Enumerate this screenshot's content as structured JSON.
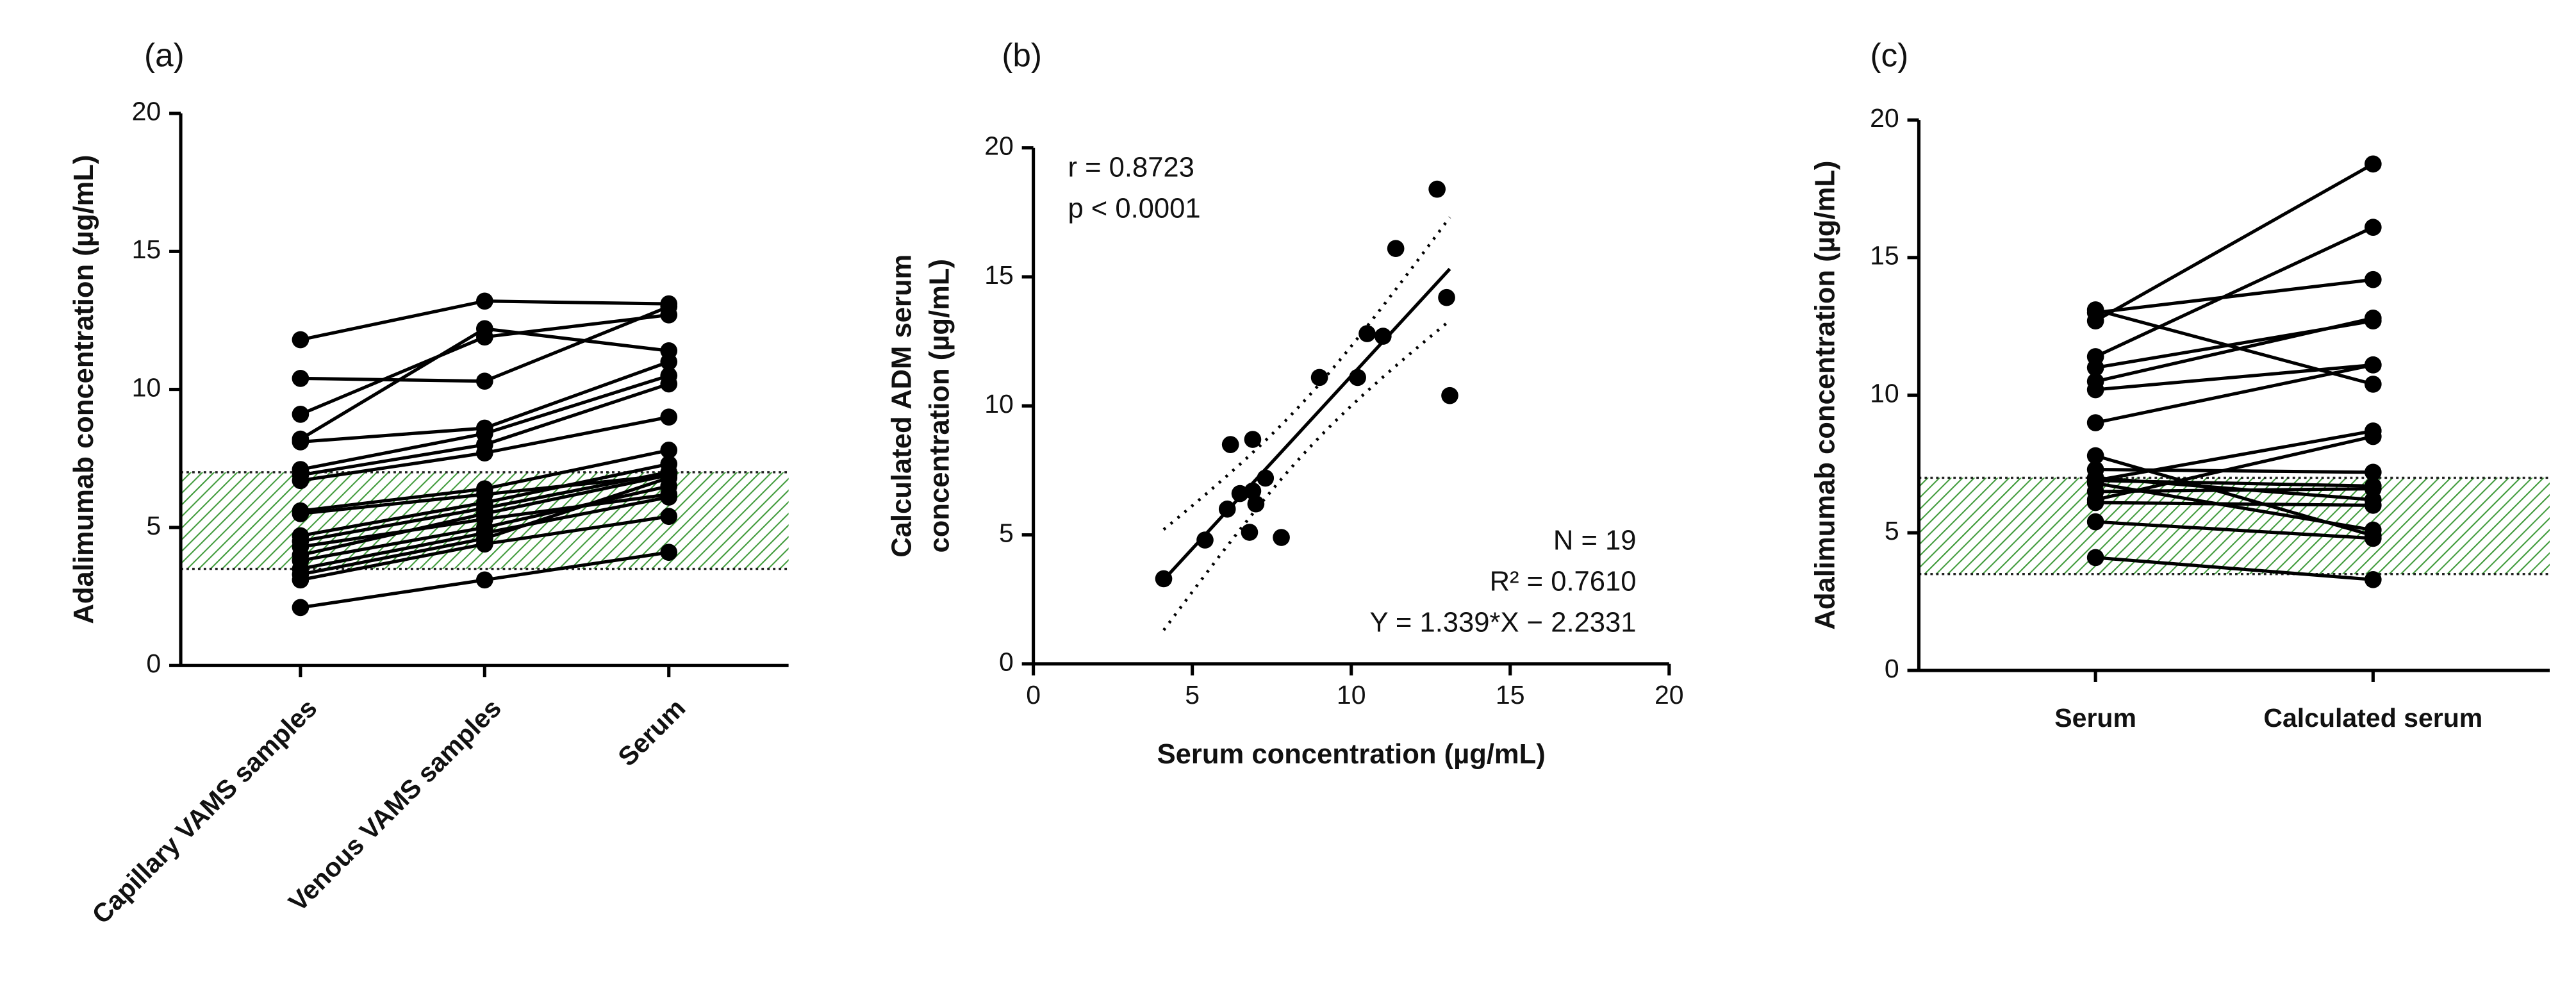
{
  "chart_data": [
    {
      "type": "line",
      "label": "(a)",
      "y_label": "Adalimumab concentration (µg/mL)",
      "categories": [
        "Capillary VAMS samples",
        "Venous VAMS samples",
        "Serum"
      ],
      "ylim": [
        0,
        20
      ],
      "yticks": [
        0,
        5,
        10,
        15,
        20
      ],
      "color": "#000000",
      "band": [
        3.5,
        7
      ],
      "band_color": "#3f9a3a",
      "series": [
        {
          "values": [
            2.1,
            3.1,
            4.1
          ]
        },
        {
          "values": [
            3.1,
            4.4,
            5.4
          ]
        },
        {
          "values": [
            3.5,
            4.8,
            6.1
          ]
        },
        {
          "values": [
            4.3,
            5.3,
            6.2
          ]
        },
        {
          "values": [
            3.8,
            5.0,
            6.5
          ]
        },
        {
          "values": [
            3.3,
            4.6,
            6.8
          ]
        },
        {
          "values": [
            5.5,
            6.2,
            6.9
          ]
        },
        {
          "values": [
            4.0,
            5.5,
            6.9
          ]
        },
        {
          "values": [
            4.5,
            5.7,
            7.0
          ]
        },
        {
          "values": [
            4.7,
            5.9,
            7.3
          ]
        },
        {
          "values": [
            5.6,
            6.4,
            7.8
          ]
        },
        {
          "values": [
            6.7,
            7.7,
            9.0
          ]
        },
        {
          "values": [
            6.9,
            8.0,
            10.2
          ]
        },
        {
          "values": [
            7.1,
            8.4,
            10.5
          ]
        },
        {
          "values": [
            8.1,
            8.6,
            11.0
          ]
        },
        {
          "values": [
            8.2,
            12.2,
            11.4
          ]
        },
        {
          "values": [
            9.1,
            11.9,
            12.7
          ]
        },
        {
          "values": [
            10.4,
            10.3,
            13.0
          ]
        },
        {
          "values": [
            11.8,
            13.2,
            13.1
          ]
        }
      ]
    },
    {
      "type": "scatter",
      "label": "(b)",
      "x_label": "Serum concentration (µg/mL)",
      "y_label": [
        "Calculated ADM serum",
        "concentration (µg/mL)"
      ],
      "xlim": [
        0,
        20
      ],
      "xticks": [
        0,
        5,
        10,
        15,
        20
      ],
      "ylim": [
        0,
        20
      ],
      "yticks": [
        0,
        5,
        10,
        15,
        20
      ],
      "color": "#000000",
      "x": [
        4.1,
        5.4,
        6.1,
        6.2,
        6.5,
        6.8,
        6.9,
        6.9,
        7.0,
        7.3,
        7.8,
        9.0,
        10.2,
        10.5,
        11.0,
        11.4,
        12.7,
        13.0,
        13.1
      ],
      "y": [
        3.3,
        4.8,
        6.0,
        8.5,
        6.6,
        5.1,
        8.7,
        6.7,
        6.2,
        7.2,
        4.9,
        11.1,
        11.1,
        12.8,
        12.7,
        16.1,
        18.4,
        14.2,
        10.4
      ],
      "fit": {
        "slope": 1.339,
        "intercept": -2.2331
      },
      "annotations": [
        "r = 0.8723",
        "p < 0.0001"
      ],
      "stats": [
        "N = 19",
        "R² =  0.7610",
        "Y = 1.339*X − 2.2331"
      ]
    },
    {
      "type": "line",
      "label": "(c)",
      "y_label": "Adalimumab concentration (µg/mL)",
      "categories": [
        "Serum",
        "Calculated serum"
      ],
      "ylim": [
        0,
        20
      ],
      "yticks": [
        0,
        5,
        10,
        15,
        20
      ],
      "color": "#000000",
      "band": [
        3.5,
        7
      ],
      "band_color": "#3f9a3a",
      "series": [
        {
          "values": [
            4.1,
            3.3
          ]
        },
        {
          "values": [
            5.4,
            4.8
          ]
        },
        {
          "values": [
            6.1,
            6.0
          ]
        },
        {
          "values": [
            6.2,
            8.5
          ]
        },
        {
          "values": [
            6.5,
            6.6
          ]
        },
        {
          "values": [
            6.8,
            5.1
          ]
        },
        {
          "values": [
            6.9,
            8.7
          ]
        },
        {
          "values": [
            6.9,
            6.7
          ]
        },
        {
          "values": [
            7.0,
            6.2
          ]
        },
        {
          "values": [
            7.3,
            7.2
          ]
        },
        {
          "values": [
            7.8,
            4.9
          ]
        },
        {
          "values": [
            9.0,
            11.1
          ]
        },
        {
          "values": [
            10.2,
            11.1
          ]
        },
        {
          "values": [
            10.5,
            12.8
          ]
        },
        {
          "values": [
            11.0,
            12.7
          ]
        },
        {
          "values": [
            11.4,
            16.1
          ]
        },
        {
          "values": [
            12.7,
            18.4
          ]
        },
        {
          "values": [
            13.0,
            14.2
          ]
        },
        {
          "values": [
            13.1,
            10.4
          ]
        }
      ]
    }
  ]
}
